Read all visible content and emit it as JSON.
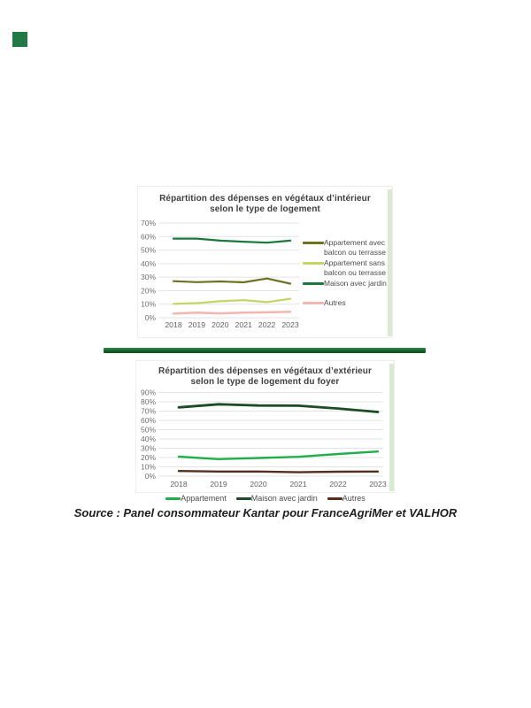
{
  "page": {
    "accent_square_color": "#1f7a46",
    "divider_color": "#17692f",
    "strip_color": "#d9e9d4",
    "source_text": "Source : Panel consommateur Kantar pour FranceAgriMer et VALHOR"
  },
  "chart_data": [
    {
      "type": "line",
      "title_line1": "Répartition des dépenses en végétaux d’intérieur",
      "title_line2": "selon le type de logement",
      "categories": [
        "2018",
        "2019",
        "2020",
        "2021",
        "2022",
        "2023"
      ],
      "ylim": [
        0,
        70
      ],
      "ytick_step": 10,
      "ytick_labels": [
        "0%",
        "10%",
        "20%",
        "30%",
        "40%",
        "50%",
        "60%",
        "70%"
      ],
      "grid": true,
      "legend_position": "right",
      "series": [
        {
          "name": "Appartement avec balcon ou terrasse",
          "color": "#6e7022",
          "values": [
            27,
            26.3,
            26.8,
            26.2,
            29,
            25.2
          ]
        },
        {
          "name": "Appartement sans balcon ou terrasse",
          "color": "#c5d565",
          "values": [
            10.3,
            10.8,
            12.2,
            13,
            11.5,
            14
          ]
        },
        {
          "name": "Maison avec jardin",
          "color": "#19793b",
          "values": [
            58.5,
            58.5,
            57,
            56.2,
            55.5,
            57
          ]
        },
        {
          "name": "Autres",
          "color": "#f4b4b1",
          "values": [
            3,
            3.8,
            3.2,
            3.8,
            4,
            4.3
          ]
        }
      ]
    },
    {
      "type": "line",
      "title_line1": "Répartition des dépenses en végétaux d’extérieur",
      "title_line2": "selon le type de logement du foyer",
      "categories": [
        "2018",
        "2019",
        "2020",
        "2021",
        "2022",
        "2023"
      ],
      "ylim": [
        0,
        90
      ],
      "ytick_step": 10,
      "ytick_labels": [
        "0%",
        "10%",
        "20%",
        "30%",
        "40%",
        "50%",
        "60%",
        "70%",
        "80%",
        "90%"
      ],
      "grid": true,
      "legend_position": "bottom",
      "series": [
        {
          "name": "Appartement",
          "color": "#22ae4b",
          "values": [
            21,
            18.3,
            19.5,
            20.8,
            23.8,
            26.5
          ]
        },
        {
          "name": "Maison avec jardin",
          "color": "#1c4b24",
          "values": [
            74,
            77.3,
            76,
            75.8,
            72.8,
            69
          ]
        },
        {
          "name": "Autres",
          "color": "#54301c",
          "values": [
            5.5,
            5,
            5,
            4.2,
            4.8,
            5
          ]
        }
      ]
    }
  ]
}
